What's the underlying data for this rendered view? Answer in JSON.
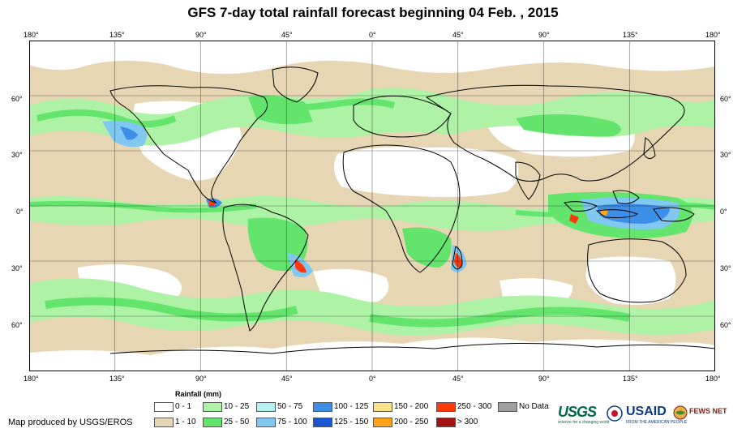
{
  "title": "GFS 7-day total rainfall forecast beginning 04 Feb. , 2015",
  "lon_ticks": [
    "180°",
    "135°",
    "90°",
    "45°",
    "0°",
    "45°",
    "90°",
    "135°",
    "180°"
  ],
  "lat_ticks": [
    "60°",
    "30°",
    "0°",
    "30°",
    "60°"
  ],
  "legend": {
    "title": "Rainfall (mm)",
    "items": [
      {
        "label": "0 - 1",
        "color": "#ffffff"
      },
      {
        "label": "1 - 10",
        "color": "#e6d6b4"
      },
      {
        "label": "10 - 25",
        "color": "#aef2a6"
      },
      {
        "label": "25 - 50",
        "color": "#63e46d"
      },
      {
        "label": "50 - 75",
        "color": "#b7f1f4"
      },
      {
        "label": "75 - 100",
        "color": "#80c7f2"
      },
      {
        "label": "100 - 125",
        "color": "#3d8ee6"
      },
      {
        "label": "125 - 150",
        "color": "#1a55d4"
      },
      {
        "label": "150 - 200",
        "color": "#ffe38a"
      },
      {
        "label": "200 - 250",
        "color": "#ffa31a"
      },
      {
        "label": "250 - 300",
        "color": "#ff3a0a"
      },
      {
        "label": "> 300",
        "color": "#a31212"
      },
      {
        "label": "No Data",
        "color": "#a0a0a0"
      }
    ]
  },
  "credit": "Map produced by USGS/EROS",
  "logos": {
    "usgs": "USGS",
    "usgs_tagline": "science for a changing world",
    "usaid": "USAID",
    "usaid_tagline": "FROM THE AMERICAN PEOPLE",
    "fews": "FEWS NET"
  }
}
